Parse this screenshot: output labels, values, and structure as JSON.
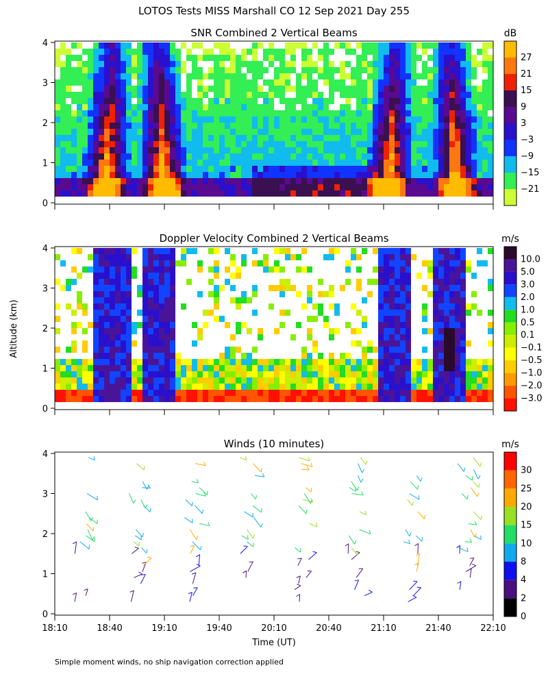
{
  "page_title": "LOTOS Tests MISS Marshall CO  12 Sep 2021 Day 255",
  "y_axis_label": "Altitude (km)",
  "x_axis_label": "Time (UT)",
  "footnote": "Simple moment winds, no ship navigation correction applied",
  "x_ticks": [
    "18:10",
    "18:40",
    "19:10",
    "19:40",
    "20:10",
    "20:40",
    "21:10",
    "21:40",
    "22:10"
  ],
  "y_ticks": [
    "0",
    "1",
    "2",
    "3",
    "4"
  ],
  "colors": {
    "snr_scale": [
      "#ccff33",
      "#33ee55",
      "#11bbee",
      "#1133ff",
      "#2a10cc",
      "#5a0a90",
      "#3a1050",
      "#ee2200",
      "#ff7711",
      "#ffbb00"
    ],
    "doppler_scale": [
      "#ff1100",
      "#ff5500",
      "#ff9900",
      "#ffcc00",
      "#ffff00",
      "#ccee00",
      "#88ee00",
      "#22dd22",
      "#11bbee",
      "#1144ff",
      "#2a10cc",
      "#4a1499",
      "#2a0a2a"
    ],
    "wind_scale": [
      "#000000",
      "#4a0e80",
      "#1010ee",
      "#11aaee",
      "#22dd66",
      "#99e022",
      "#ffaa00",
      "#ff6600",
      "#ff0000"
    ]
  },
  "chart_data": [
    {
      "type": "heatmap",
      "title": "SNR Combined 2 Vertical Beams",
      "unit": "dB",
      "ylim": [
        0,
        4
      ],
      "colorbar_labels": [
        "27",
        "21",
        "15",
        "9",
        "3",
        "−3",
        "−9",
        "−15",
        "−21"
      ],
      "bands": [
        {
          "time": "18:40",
          "altitude_range": [
            0.2,
            4.0
          ]
        },
        {
          "time": "19:05",
          "altitude_range": [
            0.2,
            4.0
          ]
        },
        {
          "time": "21:15",
          "altitude_range": [
            0.2,
            4.0
          ]
        },
        {
          "time": "21:45",
          "altitude_range": [
            0.2,
            4.0
          ]
        }
      ]
    },
    {
      "type": "heatmap",
      "title": "Doppler Velocity Combined 2 Vertical Beams",
      "unit": "m/s",
      "ylim": [
        0,
        4
      ],
      "colorbar_labels": [
        "10.0",
        "5.0",
        "3.0",
        "2.0",
        "1.0",
        "0.5",
        "0.1",
        "−0.1",
        "−0.5",
        "−1.0",
        "−2.0",
        "−3.0"
      ]
    },
    {
      "type": "scatter",
      "title": "Winds (10 minutes)",
      "unit": "m/s",
      "ylim": [
        0,
        4
      ],
      "colorbar_labels": [
        "30",
        "25",
        "20",
        "15",
        "10",
        "8",
        "4",
        "2",
        "0"
      ],
      "profile_times": [
        "18:25",
        "18:55",
        "19:25",
        "19:55",
        "20:25",
        "20:55",
        "21:25",
        "21:55"
      ]
    }
  ]
}
